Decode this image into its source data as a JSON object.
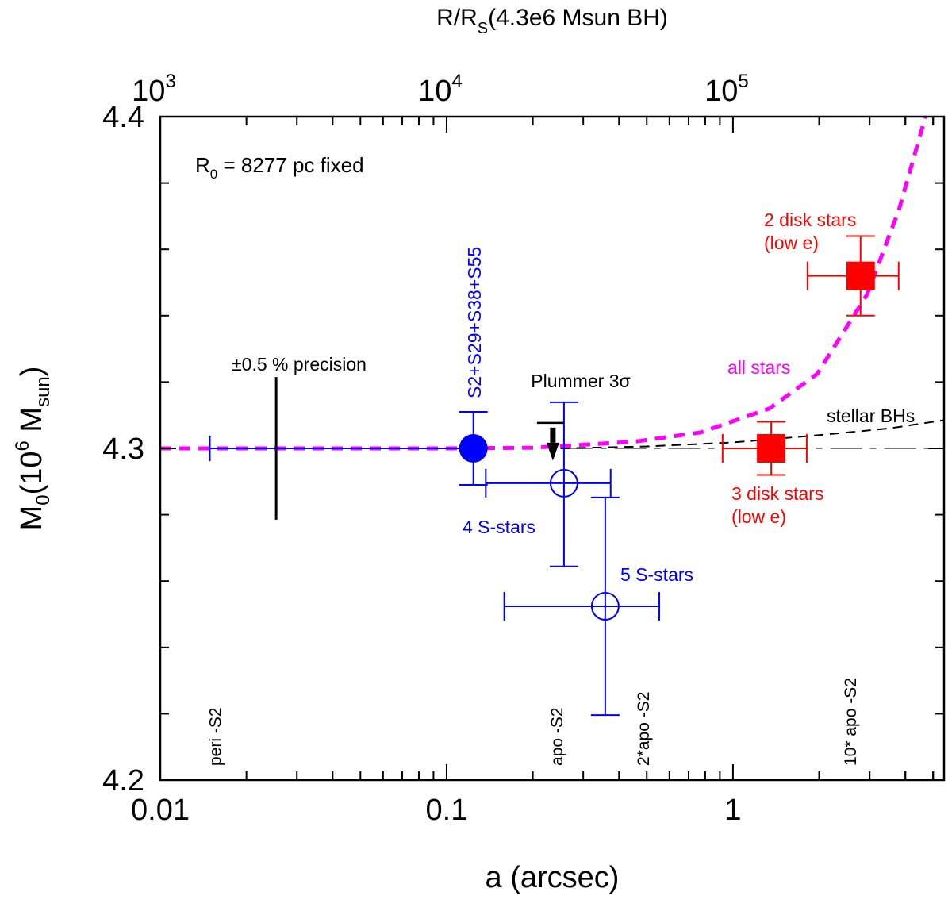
{
  "chart_data": {
    "type": "scatter",
    "xlabel": "a (arcsec)",
    "ylabel": "M0(10^6 Msun)",
    "ylabel_parts": {
      "main": "M",
      "sub0": "0",
      "open": "(10",
      "sup": "6",
      "mid": " M",
      "sub": "sun",
      "close": ")"
    },
    "top_xlabel_parts": {
      "a": "R/R",
      "sub": "S",
      "b": "(4.3e6 Msun BH)"
    },
    "xscale": "log",
    "xlim": [
      0.01,
      5.46
    ],
    "ylim": [
      4.2,
      4.4
    ],
    "x_ticks": [
      "0.01",
      "0.1",
      "1"
    ],
    "x_tick_values": [
      0.01,
      0.1,
      1
    ],
    "y_ticks": [
      "4.2",
      "4.3",
      "4.4"
    ],
    "y_tick_values": [
      4.2,
      4.3,
      4.4
    ],
    "top_axis_ticks": [
      {
        "base": "10",
        "exp": "3",
        "a": 0.01
      },
      {
        "base": "10",
        "exp": "4",
        "a": 0.1
      },
      {
        "base": "10",
        "exp": "5",
        "a": 1
      }
    ],
    "grid": false,
    "annotation_r0": {
      "a": "R",
      "sub": "0",
      "b": " = 8277 pc fixed"
    },
    "points": [
      {
        "label": "S2+S29+S38+S55",
        "x": 0.124,
        "y": 4.3,
        "yerr": [
          4.289,
          4.311
        ],
        "marker": "filled-circle",
        "color": "#0000ff"
      },
      {
        "label": "4 S-stars",
        "x": 0.257,
        "y": 4.2895,
        "xerr": [
          0.137,
          0.374
        ],
        "yerr": [
          4.2644,
          4.3139
        ],
        "marker": "open-circle",
        "color": "#0000ff"
      },
      {
        "label": "5 S-stars",
        "x": 0.358,
        "y": 4.2524,
        "xerr": [
          0.159,
          0.553
        ],
        "yerr": [
          4.2196,
          4.2852
        ],
        "marker": "open-circle",
        "color": "#0000ff"
      },
      {
        "label": "2 disk stars",
        "label2": "(low e)",
        "x": 2.79,
        "y": 4.352,
        "xerr": [
          1.82,
          3.79
        ],
        "yerr": [
          4.34,
          4.364
        ],
        "marker": "filled-square",
        "color": "#ff0000"
      },
      {
        "label": "3 disk stars",
        "label2": "(low e)",
        "x": 1.36,
        "y": 4.3,
        "xerr": [
          0.92,
          1.81
        ],
        "yerr": [
          4.292,
          4.308
        ],
        "marker": "filled-square",
        "color": "#ff0000"
      }
    ],
    "precision_bar": {
      "label": "±0.5 % precision",
      "x": 0.0254,
      "y": [
        4.2785,
        4.3215
      ],
      "color": "#000000"
    },
    "precision_line": {
      "x": [
        0.0149,
        0.124
      ],
      "y": 4.3,
      "color": "#0000ff"
    },
    "plummer_limit": {
      "label": "Plummer 3",
      "sigma": "σ",
      "x": 0.235,
      "y_top": 4.3077,
      "y_arrow": 4.2975,
      "color": "#000000"
    },
    "series": [
      {
        "name": "all stars",
        "color": "#ff00ff",
        "style": "dashed",
        "x": [
          0.01,
          0.1,
          0.2,
          0.45,
          0.77,
          1.34,
          1.97,
          2.94,
          3.8,
          4.7
        ],
        "y": [
          4.3,
          4.3,
          4.3002,
          4.302,
          4.3048,
          4.312,
          4.3225,
          4.3464,
          4.372,
          4.4
        ]
      },
      {
        "name": "stellar BHs",
        "color": "#000000",
        "style": "dashed",
        "x": [
          0.25,
          0.5,
          1.0,
          2.0,
          3.5,
          5.46
        ],
        "y": [
          4.3,
          4.3006,
          4.3018,
          4.304,
          4.306,
          4.3085
        ]
      },
      {
        "name": "",
        "color": "#808080",
        "style": "dash-dot",
        "x": [
          0.25,
          5.46
        ],
        "y": [
          4.3,
          4.3
        ]
      }
    ],
    "vertical_labels": [
      {
        "text": "peri -S2",
        "x": 0.0154
      },
      {
        "text": "apo -S2",
        "x": 0.24
      },
      {
        "text": "2*apo -S2",
        "x": 0.48
      },
      {
        "text": "10* apo -S2",
        "x": 2.54
      }
    ]
  }
}
